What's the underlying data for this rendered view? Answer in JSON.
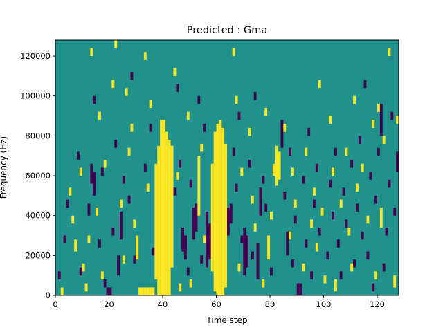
{
  "chart_data": {
    "type": "heatmap",
    "title": "Predicted : Gma",
    "xlabel": "Time step",
    "ylabel": "Frequency (Hz)",
    "xlim": [
      0,
      128
    ],
    "ylim": [
      0,
      128000
    ],
    "x_ticks": [
      0,
      20,
      40,
      60,
      80,
      100,
      120
    ],
    "y_ticks": [
      0,
      20000,
      40000,
      60000,
      80000,
      100000,
      120000
    ],
    "x_tick_labels": [
      "0",
      "20",
      "40",
      "60",
      "80",
      "100",
      "120"
    ],
    "y_tick_labels": [
      "0",
      "20000",
      "40000",
      "60000",
      "80000",
      "100000",
      "120000"
    ],
    "n_time_steps": 128,
    "n_freq_bins": 128,
    "freq_bin_width_hz": 1000,
    "levels": [
      -1,
      0,
      1
    ],
    "colors": {
      "-1": "#440154",
      "0": "#21918c",
      "1": "#fde725"
    },
    "background_level": 0,
    "yellow_runs": [
      [
        39,
        0,
        88
      ],
      [
        40,
        0,
        88
      ],
      [
        41,
        0,
        82
      ],
      [
        42,
        0,
        78
      ],
      [
        38,
        0,
        75
      ],
      [
        37,
        8,
        66
      ],
      [
        43,
        14,
        75
      ],
      [
        60,
        0,
        86
      ],
      [
        61,
        0,
        88
      ],
      [
        62,
        0,
        84
      ],
      [
        59,
        2,
        82
      ],
      [
        63,
        4,
        76
      ],
      [
        58,
        12,
        66
      ],
      [
        82,
        55,
        75
      ],
      [
        83,
        58,
        72
      ],
      [
        81,
        60,
        66
      ],
      [
        79,
        18,
        30
      ],
      [
        31,
        0,
        4
      ],
      [
        32,
        0,
        4
      ],
      [
        33,
        0,
        4
      ],
      [
        34,
        0,
        4
      ],
      [
        35,
        0,
        4
      ],
      [
        36,
        0,
        4
      ],
      [
        30,
        18,
        30
      ],
      [
        53,
        40,
        70
      ]
    ],
    "purple_runs": [
      [
        47,
        22,
        34
      ],
      [
        48,
        18,
        30
      ],
      [
        51,
        28,
        44
      ],
      [
        52,
        32,
        46
      ],
      [
        56,
        14,
        42
      ],
      [
        57,
        18,
        36
      ],
      [
        64,
        30,
        44
      ],
      [
        65,
        36,
        46
      ],
      [
        70,
        10,
        34
      ],
      [
        71,
        14,
        30
      ],
      [
        75,
        8,
        26
      ],
      [
        76,
        40,
        54
      ],
      [
        86,
        20,
        32
      ],
      [
        90,
        0,
        6
      ],
      [
        91,
        0,
        6
      ],
      [
        19,
        0,
        4
      ],
      [
        20,
        0,
        4
      ],
      [
        13,
        56,
        66
      ],
      [
        14,
        50,
        62
      ],
      [
        23,
        10,
        20
      ],
      [
        24,
        28,
        42
      ],
      [
        84,
        74,
        88
      ],
      [
        121,
        80,
        96
      ],
      [
        127,
        62,
        72
      ]
    ],
    "yellow_cells": [
      [
        2,
        0,
        4
      ],
      [
        5,
        50,
        54
      ],
      [
        6,
        36,
        40
      ],
      [
        7,
        22,
        28
      ],
      [
        9,
        60,
        64
      ],
      [
        10,
        12,
        16
      ],
      [
        11,
        2,
        6
      ],
      [
        12,
        26,
        30
      ],
      [
        13,
        120,
        124
      ],
      [
        15,
        40,
        44
      ],
      [
        16,
        88,
        92
      ],
      [
        17,
        8,
        12
      ],
      [
        18,
        64,
        68
      ],
      [
        21,
        104,
        108
      ],
      [
        22,
        124,
        128
      ],
      [
        24,
        44,
        48
      ],
      [
        25,
        16,
        20
      ],
      [
        26,
        100,
        104
      ],
      [
        27,
        70,
        74
      ],
      [
        28,
        82,
        86
      ],
      [
        29,
        34,
        38
      ],
      [
        33,
        118,
        122
      ],
      [
        34,
        52,
        56
      ],
      [
        35,
        94,
        98
      ],
      [
        44,
        110,
        114
      ],
      [
        45,
        58,
        62
      ],
      [
        46,
        2,
        6
      ],
      [
        49,
        88,
        92
      ],
      [
        50,
        4,
        8
      ],
      [
        54,
        72,
        76
      ],
      [
        55,
        26,
        30
      ],
      [
        66,
        120,
        124
      ],
      [
        67,
        96,
        100
      ],
      [
        68,
        12,
        16
      ],
      [
        69,
        60,
        64
      ],
      [
        72,
        80,
        84
      ],
      [
        73,
        46,
        50
      ],
      [
        74,
        32,
        36
      ],
      [
        77,
        4,
        8
      ],
      [
        78,
        90,
        94
      ],
      [
        80,
        38,
        42
      ],
      [
        85,
        82,
        86
      ],
      [
        87,
        28,
        32
      ],
      [
        88,
        60,
        64
      ],
      [
        89,
        44,
        48
      ],
      [
        92,
        12,
        16
      ],
      [
        93,
        70,
        74
      ],
      [
        95,
        34,
        38
      ],
      [
        96,
        50,
        54
      ],
      [
        97,
        22,
        26
      ],
      [
        98,
        104,
        108
      ],
      [
        99,
        40,
        44
      ],
      [
        100,
        6,
        10
      ],
      [
        102,
        86,
        90
      ],
      [
        103,
        60,
        64
      ],
      [
        104,
        2,
        8
      ],
      [
        106,
        44,
        48
      ],
      [
        108,
        70,
        74
      ],
      [
        109,
        30,
        34
      ],
      [
        110,
        12,
        16
      ],
      [
        111,
        96,
        100
      ],
      [
        112,
        52,
        56
      ],
      [
        114,
        62,
        66
      ],
      [
        116,
        36,
        40
      ],
      [
        118,
        84,
        88
      ],
      [
        119,
        8,
        12
      ],
      [
        120,
        92,
        96
      ],
      [
        121,
        34,
        44
      ],
      [
        122,
        76,
        80
      ],
      [
        124,
        120,
        124
      ],
      [
        126,
        4,
        10
      ],
      [
        127,
        86,
        90
      ]
    ],
    "purple_cells": [
      [
        1,
        8,
        12
      ],
      [
        3,
        26,
        30
      ],
      [
        4,
        44,
        48
      ],
      [
        8,
        68,
        72
      ],
      [
        9,
        10,
        14
      ],
      [
        12,
        40,
        46
      ],
      [
        14,
        96,
        100
      ],
      [
        16,
        24,
        28
      ],
      [
        17,
        60,
        64
      ],
      [
        18,
        4,
        8
      ],
      [
        21,
        30,
        34
      ],
      [
        22,
        74,
        78
      ],
      [
        25,
        56,
        60
      ],
      [
        27,
        46,
        50
      ],
      [
        28,
        108,
        112
      ],
      [
        29,
        16,
        20
      ],
      [
        33,
        62,
        66
      ],
      [
        35,
        82,
        86
      ],
      [
        36,
        20,
        24
      ],
      [
        44,
        50,
        54
      ],
      [
        45,
        102,
        106
      ],
      [
        46,
        64,
        68
      ],
      [
        49,
        10,
        14
      ],
      [
        50,
        54,
        58
      ],
      [
        53,
        96,
        100
      ],
      [
        54,
        16,
        20
      ],
      [
        55,
        82,
        86
      ],
      [
        66,
        70,
        74
      ],
      [
        67,
        52,
        56
      ],
      [
        68,
        88,
        92
      ],
      [
        69,
        26,
        30
      ],
      [
        72,
        64,
        68
      ],
      [
        73,
        18,
        22
      ],
      [
        74,
        98,
        102
      ],
      [
        77,
        56,
        60
      ],
      [
        78,
        42,
        46
      ],
      [
        80,
        10,
        14
      ],
      [
        85,
        48,
        52
      ],
      [
        87,
        70,
        74
      ],
      [
        88,
        14,
        18
      ],
      [
        89,
        36,
        40
      ],
      [
        92,
        56,
        60
      ],
      [
        93,
        24,
        28
      ],
      [
        94,
        80,
        84
      ],
      [
        95,
        8,
        12
      ],
      [
        96,
        44,
        48
      ],
      [
        97,
        62,
        66
      ],
      [
        98,
        30,
        34
      ],
      [
        101,
        18,
        22
      ],
      [
        102,
        54,
        58
      ],
      [
        103,
        38,
        42
      ],
      [
        104,
        70,
        74
      ],
      [
        105,
        24,
        28
      ],
      [
        106,
        8,
        12
      ],
      [
        107,
        50,
        54
      ],
      [
        108,
        34,
        38
      ],
      [
        110,
        64,
        68
      ],
      [
        111,
        14,
        18
      ],
      [
        112,
        42,
        46
      ],
      [
        113,
        76,
        80
      ],
      [
        114,
        28,
        32
      ],
      [
        115,
        104,
        108
      ],
      [
        116,
        18,
        22
      ],
      [
        117,
        58,
        62
      ],
      [
        118,
        2,
        6
      ],
      [
        119,
        46,
        50
      ],
      [
        120,
        70,
        74
      ],
      [
        122,
        12,
        16
      ],
      [
        123,
        30,
        34
      ],
      [
        124,
        54,
        58
      ],
      [
        125,
        88,
        92
      ],
      [
        126,
        40,
        44
      ]
    ],
    "grid": false,
    "legend": false
  }
}
